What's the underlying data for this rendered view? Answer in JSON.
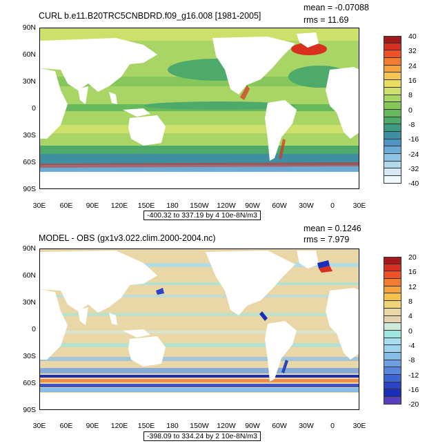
{
  "panels": [
    {
      "id": "curl",
      "title": "CURL b.e11.B20TRC5CNBDRD.f09_g16.008 [1981-2005]",
      "mean": "mean = -0.07088",
      "rms": "rms = 11.69",
      "range": "-400.32 to 337.19 by 4 10e-8N/m3",
      "lat_labels": [
        "90N",
        "60N",
        "30N",
        "0",
        "30S",
        "60S",
        "90S"
      ],
      "lon_labels": [
        "30E",
        "60E",
        "90E",
        "120E",
        "150E",
        "180",
        "150W",
        "120W",
        "90W",
        "60W",
        "30W",
        "0",
        "30E"
      ],
      "colorbar": {
        "labels": [
          "40",
          "32",
          "24",
          "16",
          "8",
          "0",
          "-8",
          "-16",
          "-24",
          "-32",
          "-40"
        ],
        "colors": [
          "#9e1b1b",
          "#d7301f",
          "#f0512b",
          "#f47c30",
          "#f6a23e",
          "#f5c452",
          "#eadb62",
          "#cfe06a",
          "#a8d565",
          "#86c75c",
          "#66b85c",
          "#4daa6a",
          "#3e9b82",
          "#3f8fa3",
          "#4f95c4",
          "#6eaad6",
          "#8ec3e3",
          "#b2d8ec",
          "#d5eaf4",
          "#eef7fb"
        ]
      }
    },
    {
      "id": "diff",
      "title": "MODEL - OBS (gx1v3.022.clim.2000-2004.nc)",
      "mean": "mean = 0.1246",
      "rms": "rms = 7.979",
      "range": "-398.09 to 334.24 by 2 10e-8N/m3",
      "lat_labels": [
        "90N",
        "60N",
        "30N",
        "0",
        "30S",
        "60S",
        "90S"
      ],
      "lon_labels": [
        "30E",
        "60E",
        "90E",
        "120E",
        "150E",
        "180",
        "150W",
        "120W",
        "90W",
        "60W",
        "30W",
        "0",
        "30E"
      ],
      "colorbar": {
        "labels": [
          "20",
          "16",
          "12",
          "8",
          "4",
          "0",
          "-4",
          "-8",
          "-12",
          "-16",
          "-20"
        ],
        "colors": [
          "#a5191b",
          "#d7301f",
          "#f0512b",
          "#f47c30",
          "#f6a23e",
          "#f6c24a",
          "#f0d47a",
          "#ead7a8",
          "#e6d2b0",
          "#cfe9d9",
          "#9ee6e0",
          "#a6def0",
          "#9fd2ef",
          "#86bde8",
          "#6e9fe2",
          "#5a86de",
          "#3d64d4",
          "#2a44c6",
          "#1a2fb8",
          "#5a3ec0"
        ]
      }
    }
  ]
}
